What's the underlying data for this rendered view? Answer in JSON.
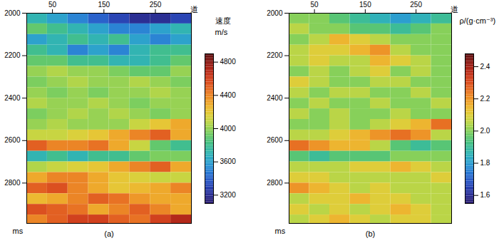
{
  "chart_data": [
    {
      "type": "heatmap",
      "caption": "(a)",
      "x_label": "道",
      "y_label": "ms",
      "xlim": [
        0,
        320
      ],
      "xticks": [
        50,
        150,
        250
      ],
      "ylim": [
        2000,
        2990
      ],
      "yticks": [
        2000,
        2200,
        2400,
        2600,
        2800
      ],
      "x_bins": [
        0,
        40,
        80,
        120,
        160,
        200,
        240,
        280,
        320
      ],
      "y_bins": [
        2000,
        2050,
        2100,
        2150,
        2200,
        2250,
        2300,
        2350,
        2400,
        2450,
        2500,
        2550,
        2600,
        2650,
        2700,
        2750,
        2800,
        2850,
        2900,
        2950,
        3000
      ],
      "values": [
        [
          3700,
          3600,
          3500,
          3400,
          3300,
          3200,
          3200,
          3300
        ],
        [
          3900,
          3800,
          3700,
          3600,
          3500,
          3500,
          3600,
          3700
        ],
        [
          3600,
          3700,
          3800,
          3700,
          3800,
          3600,
          3500,
          3600
        ],
        [
          3800,
          3700,
          3500,
          3600,
          3500,
          3700,
          3800,
          3800
        ],
        [
          3900,
          3900,
          3800,
          3800,
          3700,
          3700,
          3800,
          3900
        ],
        [
          4000,
          4050,
          4000,
          4000,
          3950,
          3900,
          3900,
          4000
        ],
        [
          3950,
          4000,
          4050,
          4000,
          4000,
          4050,
          4000,
          3950
        ],
        [
          4000,
          3950,
          4000,
          3950,
          4000,
          4000,
          4050,
          4000
        ],
        [
          4050,
          4000,
          4000,
          4050,
          4000,
          3950,
          4000,
          4000
        ],
        [
          3950,
          4000,
          4050,
          4000,
          4050,
          4000,
          3950,
          4000
        ],
        [
          4000,
          4050,
          4000,
          4000,
          4000,
          4100,
          4200,
          4300
        ],
        [
          4100,
          4100,
          4150,
          4200,
          4300,
          4400,
          4500,
          4300
        ],
        [
          4500,
          4400,
          4400,
          4450,
          4300,
          4100,
          3900,
          3800
        ],
        [
          3700,
          3800,
          3700,
          3800,
          3800,
          3900,
          3950,
          3950
        ],
        [
          4050,
          4100,
          4150,
          4200,
          4300,
          4400,
          4500,
          4300
        ],
        [
          4300,
          4400,
          4400,
          4300,
          4200,
          4150,
          4100,
          4100
        ],
        [
          4500,
          4550,
          4400,
          4300,
          4200,
          4250,
          4300,
          4400
        ],
        [
          4250,
          4300,
          4400,
          4500,
          4450,
          4350,
          4300,
          4300
        ],
        [
          4550,
          4500,
          4450,
          4300,
          4400,
          4500,
          4400,
          4300
        ],
        [
          4400,
          4500,
          4600,
          4600,
          4500,
          4450,
          4600,
          4700
        ]
      ],
      "colorbar": {
        "title": "速度",
        "unit": "m/s",
        "range": [
          3100,
          4900
        ],
        "ticks": [
          3200,
          3600,
          4000,
          4400,
          4800
        ]
      }
    },
    {
      "type": "heatmap",
      "caption": "(b)",
      "x_label": "道",
      "y_label": "ms",
      "xlim": [
        0,
        320
      ],
      "xticks": [
        50,
        150,
        250
      ],
      "ylim": [
        2000,
        2990
      ],
      "yticks": [
        2000,
        2200,
        2400,
        2600,
        2800
      ],
      "x_bins": [
        0,
        40,
        80,
        120,
        160,
        200,
        240,
        280,
        320
      ],
      "y_bins": [
        2000,
        2050,
        2100,
        2150,
        2200,
        2250,
        2300,
        2350,
        2400,
        2450,
        2500,
        2550,
        2600,
        2650,
        2700,
        2750,
        2800,
        2850,
        2900,
        2950,
        3000
      ],
      "values": [
        [
          2.0,
          2.0,
          1.95,
          1.9,
          1.85,
          1.8,
          1.85,
          1.9
        ],
        [
          2.05,
          2.0,
          2.0,
          1.95,
          1.95,
          1.9,
          1.95,
          2.0
        ],
        [
          2.0,
          2.05,
          2.15,
          2.1,
          2.05,
          2.0,
          2.0,
          2.0
        ],
        [
          2.05,
          2.1,
          2.1,
          2.15,
          2.2,
          2.05,
          2.0,
          2.0
        ],
        [
          2.05,
          2.1,
          2.05,
          2.05,
          2.15,
          2.1,
          2.05,
          2.0
        ],
        [
          2.0,
          2.05,
          2.0,
          2.05,
          2.1,
          2.0,
          2.05,
          2.0
        ],
        [
          2.1,
          2.05,
          2.0,
          2.0,
          2.05,
          2.05,
          2.0,
          2.0
        ],
        [
          2.05,
          2.0,
          2.05,
          2.05,
          2.0,
          2.0,
          2.05,
          2.0
        ],
        [
          2.0,
          2.05,
          2.0,
          2.0,
          2.05,
          2.0,
          2.0,
          2.05
        ],
        [
          2.05,
          2.0,
          2.05,
          2.0,
          2.0,
          2.05,
          2.0,
          2.0
        ],
        [
          2.0,
          2.0,
          2.05,
          2.0,
          2.05,
          2.1,
          2.15,
          2.25
        ],
        [
          2.05,
          2.05,
          2.1,
          2.15,
          2.2,
          2.25,
          2.2,
          2.05
        ],
        [
          2.25,
          2.2,
          2.15,
          2.15,
          2.05,
          1.95,
          1.9,
          1.95
        ],
        [
          1.95,
          1.9,
          1.95,
          1.95,
          1.95,
          2.0,
          2.0,
          2.0
        ],
        [
          2.05,
          2.05,
          2.05,
          2.1,
          2.1,
          2.15,
          2.1,
          2.05
        ],
        [
          2.1,
          2.1,
          2.05,
          2.05,
          2.05,
          2.05,
          2.05,
          2.1
        ],
        [
          2.2,
          2.15,
          2.1,
          2.05,
          2.1,
          2.05,
          2.05,
          2.05
        ],
        [
          2.05,
          2.1,
          2.1,
          2.15,
          2.1,
          2.1,
          2.05,
          2.05
        ],
        [
          2.1,
          2.05,
          2.1,
          2.05,
          2.1,
          2.15,
          2.1,
          2.05
        ],
        [
          2.05,
          2.1,
          2.15,
          2.1,
          2.05,
          2.1,
          2.1,
          2.05
        ]
      ],
      "colorbar": {
        "title": "ρ/(g·cm⁻³)",
        "range": [
          1.55,
          2.48
        ],
        "ticks": [
          1.6,
          1.8,
          {
            "value": 2.0,
            "label": "2.0"
          },
          2.2,
          2.4
        ]
      }
    }
  ]
}
